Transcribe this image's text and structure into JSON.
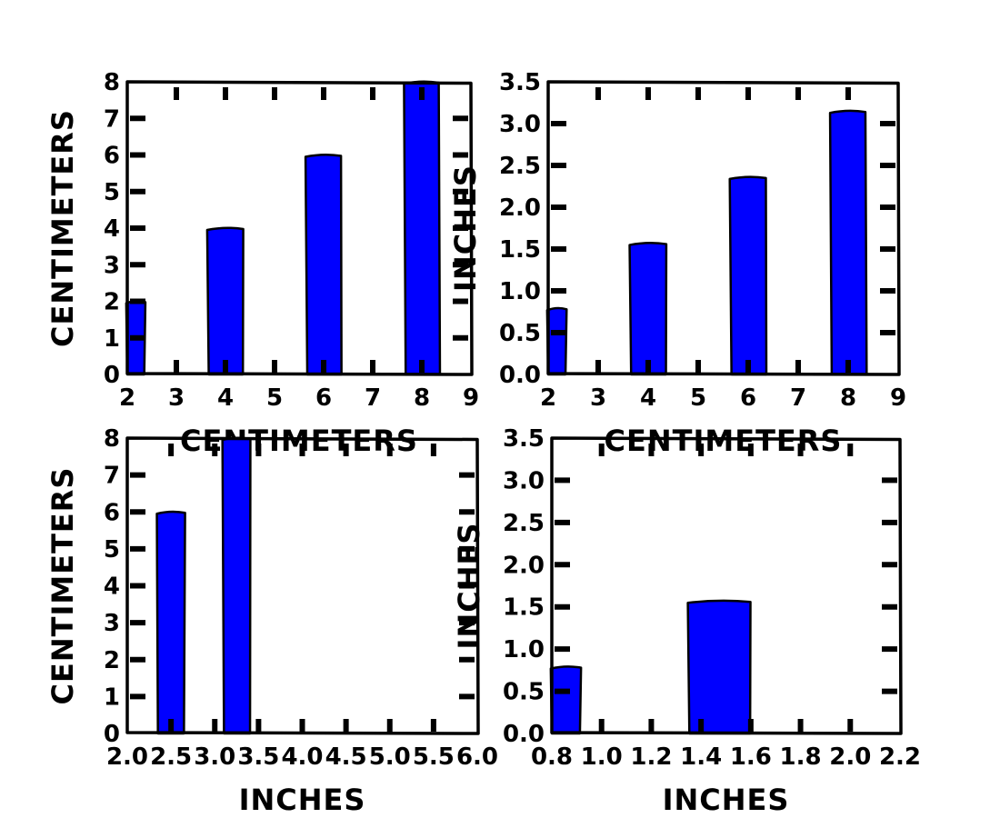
{
  "chart_data": [
    {
      "type": "bar",
      "panel": "top-left",
      "x": [
        2,
        4,
        6,
        8
      ],
      "values": [
        2,
        4,
        6,
        8
      ],
      "bar_width": 0.7,
      "xlim": [
        2,
        9
      ],
      "ylim": [
        0,
        8
      ],
      "xticks": [
        "2",
        "3",
        "4",
        "5",
        "6",
        "7",
        "8",
        "9"
      ],
      "yticks": [
        "0",
        "1",
        "2",
        "3",
        "4",
        "5",
        "6",
        "7",
        "8"
      ],
      "xlabel": "CENTIMETERS",
      "ylabel": "CENTIMETERS",
      "color": "#0000ff"
    },
    {
      "type": "bar",
      "panel": "top-right",
      "x": [
        2,
        4,
        6,
        8
      ],
      "values": [
        0.79,
        1.57,
        2.36,
        3.15
      ],
      "bar_width": 0.7,
      "xlim": [
        2,
        9
      ],
      "ylim": [
        0,
        3.5
      ],
      "xticks": [
        "2",
        "3",
        "4",
        "5",
        "6",
        "7",
        "8",
        "9"
      ],
      "yticks": [
        "0.0",
        "0.5",
        "1.0",
        "1.5",
        "2.0",
        "2.5",
        "3.0",
        "3.5"
      ],
      "xlabel": "CENTIMETERS",
      "ylabel": "INCHES",
      "color": "#0000ff"
    },
    {
      "type": "bar",
      "panel": "bottom-left",
      "x": [
        2.5,
        3.25
      ],
      "values": [
        6,
        8
      ],
      "bar_width": 0.3,
      "xlim": [
        2.0,
        6.0
      ],
      "ylim": [
        0,
        8
      ],
      "xticks": [
        "2.0",
        "2.5",
        "3.0",
        "3.5",
        "4.0",
        "4.5",
        "5.0",
        "5.5",
        "6.0"
      ],
      "yticks": [
        "0",
        "1",
        "2",
        "3",
        "4",
        "5",
        "6",
        "7",
        "8"
      ],
      "xlabel": "INCHES",
      "ylabel": "CENTIMETERS",
      "color": "#0000ff"
    },
    {
      "type": "bar",
      "panel": "bottom-right",
      "x": [
        0.79,
        1.57
      ],
      "values": [
        0.79,
        1.57
      ],
      "bar_width": 0.28,
      "xlim": [
        0.8,
        2.4
      ],
      "ylim": [
        0,
        3.5
      ],
      "xticks": [
        "0.8",
        "1.0",
        "1.2",
        "1.4",
        "1.6",
        "1.8",
        "2.0",
        "2.2"
      ],
      "yticks": [
        "0.0",
        "0.5",
        "1.0",
        "1.5",
        "2.0",
        "2.5",
        "3.0",
        "3.5"
      ],
      "xlabel": "INCHES",
      "ylabel": "INCHES",
      "color": "#0000ff"
    }
  ]
}
